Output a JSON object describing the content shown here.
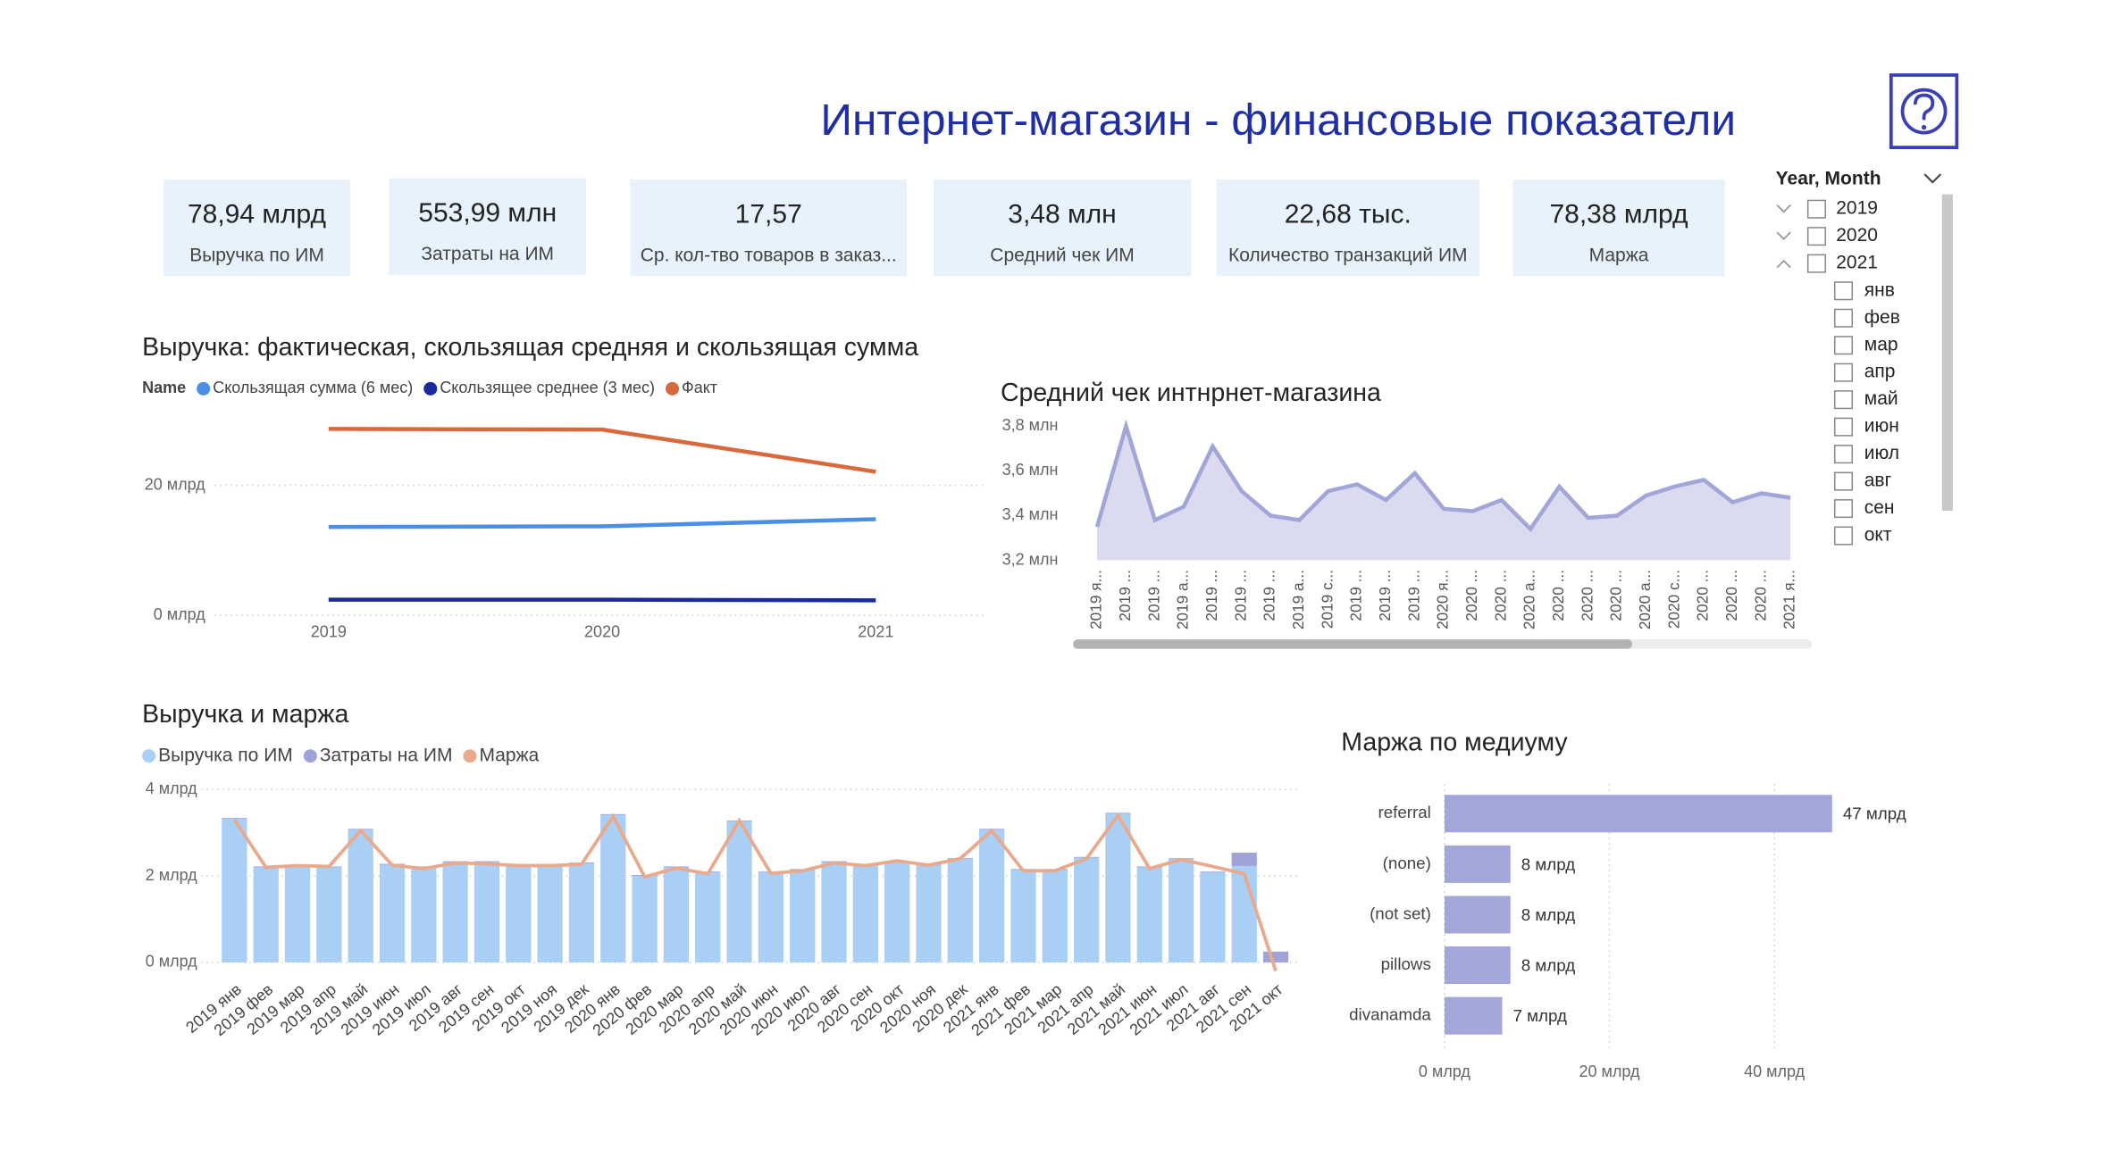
{
  "header": {
    "title": "Интернет-магазин - финансовые показатели"
  },
  "kpis": [
    {
      "value": "78,94 млрд",
      "label": "Выручка по ИМ"
    },
    {
      "value": "553,99 млн",
      "label": "Затраты на ИМ"
    },
    {
      "value": "17,57",
      "label": "Ср. кол-тво товаров в заказ..."
    },
    {
      "value": "3,48 млн",
      "label": "Средний чек ИМ"
    },
    {
      "value": "22,68 тыс.",
      "label": "Количество транзакций ИМ"
    },
    {
      "value": "78,38 млрд",
      "label": "Маржа"
    }
  ],
  "slicer": {
    "title": "Year, Month",
    "years": [
      "2019",
      "2020",
      "2021"
    ],
    "months": [
      "янв",
      "фев",
      "мар",
      "апр",
      "май",
      "июн",
      "июл",
      "авг",
      "сен",
      "окт"
    ]
  },
  "chart_data": [
    {
      "type": "line",
      "title": "Выручка: фактическая, скользящая средняя и скользящая сумма",
      "legend_title": "Name",
      "categories": [
        "2019",
        "2020",
        "2021"
      ],
      "series": [
        {
          "name": "Скользящая сумма (6 мес)",
          "color": "#4a8fe6",
          "values": [
            13.6,
            13.7,
            14.8
          ]
        },
        {
          "name": "Скользящее среднее (3 мес)",
          "color": "#1a2a9c",
          "values": [
            2.4,
            2.4,
            2.3
          ]
        },
        {
          "name": "Факт",
          "color": "#d9693d",
          "values": [
            28.7,
            28.6,
            22.1
          ]
        }
      ],
      "ylim": [
        0,
        32
      ],
      "yticks": [
        {
          "value": 0,
          "label": "0 млрд"
        },
        {
          "value": 20,
          "label": "20 млрд"
        }
      ],
      "grid": true
    },
    {
      "type": "area",
      "title": "Средний чек интнрнет-магазина",
      "categories": [
        "2019 я...",
        "2019 ...",
        "2019 ...",
        "2019 а...",
        "2019 ...",
        "2019 ...",
        "2019 ...",
        "2019 а...",
        "2019 с...",
        "2019 ...",
        "2019 ...",
        "2019 ...",
        "2020 я...",
        "2020 ...",
        "2020 ...",
        "2020 а...",
        "2020 ...",
        "2020 ...",
        "2020 ...",
        "2020 а...",
        "2020 с...",
        "2020 ...",
        "2020 ...",
        "2020 ...",
        "2021 я..."
      ],
      "color": "#a2a5d8",
      "values": [
        3.35,
        3.8,
        3.38,
        3.44,
        3.71,
        3.51,
        3.4,
        3.38,
        3.51,
        3.54,
        3.47,
        3.59,
        3.43,
        3.42,
        3.47,
        3.34,
        3.53,
        3.39,
        3.4,
        3.49,
        3.53,
        3.56,
        3.46,
        3.5,
        3.48
      ],
      "ylim": [
        3.2,
        3.82
      ],
      "yticks": [
        {
          "value": 3.2,
          "label": "3,2 млн"
        },
        {
          "value": 3.4,
          "label": "3,4 млн"
        },
        {
          "value": 3.6,
          "label": "3,6 млн"
        },
        {
          "value": 3.8,
          "label": "3,8 млн"
        }
      ],
      "grid": false
    },
    {
      "type": "bar_line",
      "title": "Выручка и маржа",
      "categories": [
        "2019 янв",
        "2019 фев",
        "2019 мар",
        "2019 апр",
        "2019 май",
        "2019 июн",
        "2019 июл",
        "2019 авг",
        "2019 сен",
        "2019 окт",
        "2019 ноя",
        "2019 дек",
        "2020 янв",
        "2020 фев",
        "2020 мар",
        "2020 апр",
        "2020 май",
        "2020 июн",
        "2020 июл",
        "2020 авг",
        "2020 сен",
        "2020 окт",
        "2020 ноя",
        "2020 дек",
        "2021 янв",
        "2021 фев",
        "2021 мар",
        "2021 апр",
        "2021 май",
        "2021 июн",
        "2021 июл",
        "2021 авг",
        "2021 сен",
        "2021 окт"
      ],
      "stacked": true,
      "series": [
        {
          "name": "Выручка по ИМ",
          "type": "bar",
          "color": "#a9cff5",
          "values": [
            3.32,
            2.2,
            2.2,
            2.2,
            3.07,
            2.26,
            2.2,
            2.32,
            2.32,
            2.26,
            2.26,
            2.29,
            3.41,
            2.0,
            2.2,
            2.08,
            3.26,
            2.08,
            2.14,
            2.32,
            2.26,
            2.32,
            2.26,
            2.39,
            3.07,
            2.14,
            2.14,
            2.42,
            3.44,
            2.2,
            2.39,
            2.08,
            2.23,
            0
          ]
        },
        {
          "name": "Затраты на ИМ",
          "type": "bar",
          "color": "#9fa3d8",
          "values": [
            0.02,
            0.02,
            0.02,
            0.02,
            0.02,
            0.02,
            0.02,
            0.02,
            0.02,
            0.02,
            0.02,
            0.02,
            0.02,
            0.02,
            0.02,
            0.02,
            0.02,
            0.02,
            0.02,
            0.02,
            0.02,
            0.02,
            0.02,
            0.02,
            0.02,
            0.02,
            0.02,
            0.02,
            0.02,
            0.02,
            0.02,
            0.02,
            0.31,
            0.25
          ]
        },
        {
          "name": "Маржа",
          "type": "line",
          "color": "#e8a98c",
          "values": [
            3.3,
            2.2,
            2.24,
            2.22,
            3.05,
            2.25,
            2.17,
            2.3,
            2.28,
            2.24,
            2.24,
            2.27,
            3.38,
            1.98,
            2.18,
            2.05,
            3.28,
            2.06,
            2.12,
            2.3,
            2.24,
            2.35,
            2.25,
            2.4,
            3.05,
            2.12,
            2.12,
            2.4,
            3.4,
            2.17,
            2.38,
            2.22,
            2.05,
            -0.2
          ]
        }
      ],
      "ylim": [
        -0.3,
        4
      ],
      "yticks": [
        {
          "value": 0,
          "label": "0 млрд"
        },
        {
          "value": 2,
          "label": "2 млрд"
        },
        {
          "value": 4,
          "label": "4 млрд"
        }
      ],
      "grid": true
    },
    {
      "type": "hbar",
      "title": "Маржа по медиуму",
      "categories": [
        "referral",
        "(none)",
        "(not set)",
        "pillows",
        "divanamda"
      ],
      "values": [
        47,
        8,
        8,
        8,
        7
      ],
      "value_labels": [
        "47 млрд",
        "8 млрд",
        "8 млрд",
        "8 млрд",
        "7 млрд"
      ],
      "color": "#a3a6d9",
      "xlim": [
        0,
        52
      ],
      "xticks": [
        {
          "value": 0,
          "label": "0 млрд"
        },
        {
          "value": 20,
          "label": "20 млрд"
        },
        {
          "value": 40,
          "label": "40 млрд"
        }
      ],
      "grid": true
    }
  ]
}
